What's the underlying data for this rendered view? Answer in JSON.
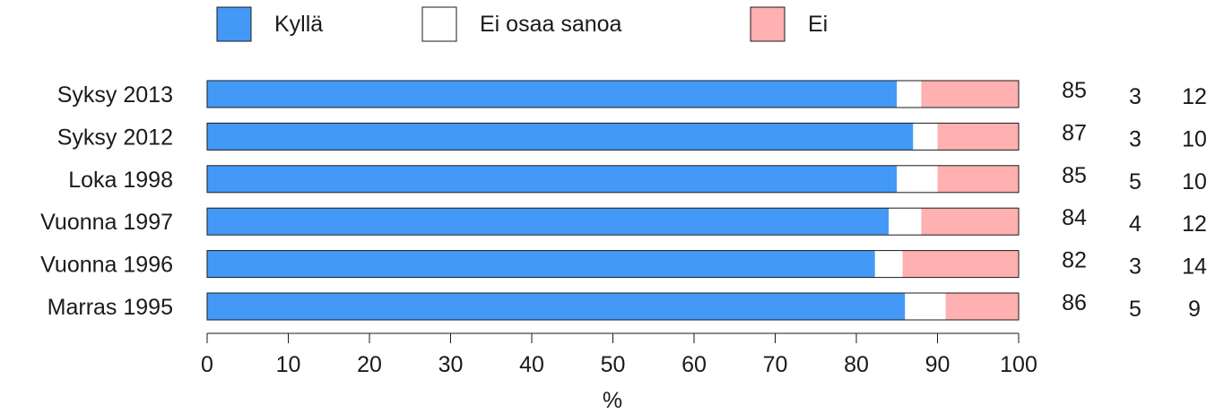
{
  "chart_data": {
    "type": "bar",
    "orientation": "horizontal",
    "stacked": true,
    "categories": [
      "Syksy 2013",
      "Syksy 2012",
      "Loka 1998",
      "Vuonna 1997",
      "Vuonna 1996",
      "Marras 1995"
    ],
    "series": [
      {
        "name": "Kyllä",
        "color": "#4499f6",
        "values": [
          85,
          87,
          85,
          84,
          82.3,
          86
        ],
        "labels": [
          "85",
          "87",
          "85",
          "84",
          "82",
          "86"
        ]
      },
      {
        "name": "Ei osaa sanoa",
        "color": "#ffffff",
        "values": [
          3,
          3,
          5,
          4,
          3.4,
          5
        ],
        "labels": [
          "3",
          "3",
          "5",
          "4",
          "3",
          "5"
        ]
      },
      {
        "name": "Ei",
        "color": "#ffb0b0",
        "values": [
          12,
          10,
          10,
          12,
          14.3,
          9
        ],
        "labels": [
          "12",
          "10",
          "10",
          "12",
          "14",
          "9"
        ]
      }
    ],
    "xlabel": "%",
    "xlim": [
      0,
      100
    ],
    "xticks": [
      "0",
      "10",
      "20",
      "30",
      "40",
      "50",
      "60",
      "70",
      "80",
      "90",
      "100"
    ],
    "legend_position": "top",
    "grid": false
  }
}
